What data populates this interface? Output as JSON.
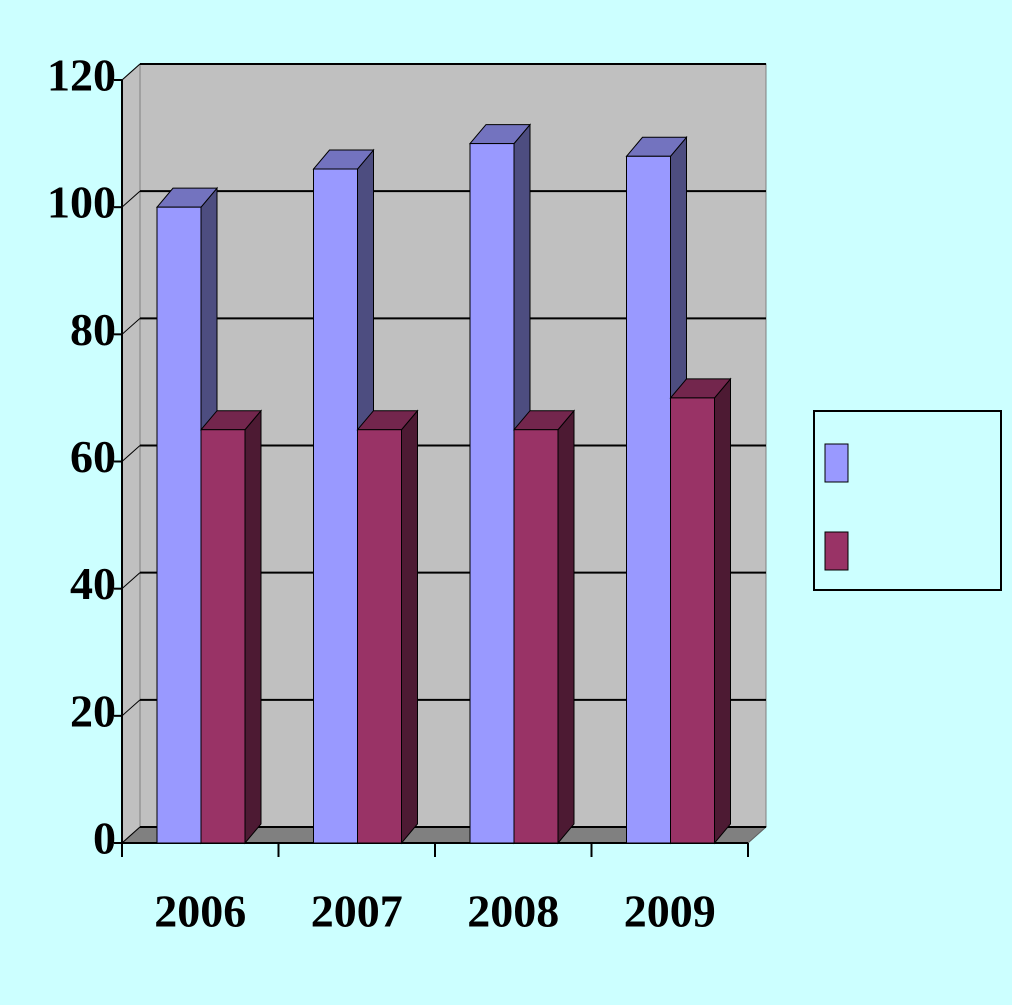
{
  "chart_data": {
    "type": "bar3d",
    "categories": [
      "2006",
      "2007",
      "2008",
      "2009"
    ],
    "series": [
      {
        "color": "#9999ff",
        "values": [
          100,
          106,
          110,
          108
        ]
      },
      {
        "color": "#993366",
        "values": [
          65,
          65,
          65,
          70
        ]
      }
    ],
    "ylim": [
      0,
      120
    ],
    "yticks": [
      0,
      20,
      40,
      60,
      80,
      100,
      120
    ],
    "grid": true,
    "legend": "right"
  }
}
